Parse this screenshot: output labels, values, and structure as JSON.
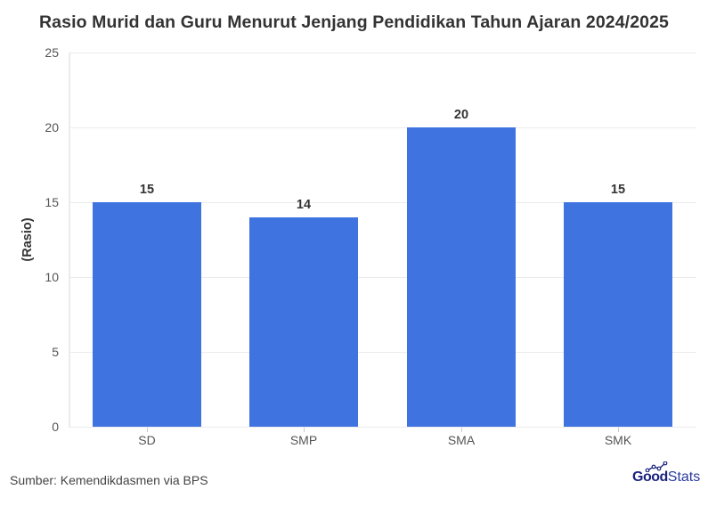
{
  "chart_data": {
    "type": "bar",
    "title": "Rasio Murid dan Guru Menurut Jenjang Pendidikan Tahun Ajaran 2024/2025",
    "xlabel": "",
    "ylabel": "(Rasio)",
    "categories": [
      "SD",
      "SMP",
      "SMA",
      "SMK"
    ],
    "values": [
      15,
      14,
      20,
      15
    ],
    "value_labels": [
      "15",
      "14",
      "20",
      "15"
    ],
    "yticks": [
      "0",
      "5",
      "10",
      "15",
      "20",
      "25"
    ],
    "ylim": [
      0,
      25
    ],
    "grid": true,
    "legend": "none",
    "bar_color": "#3f74e0"
  },
  "footer": {
    "source": "Sumber: Kemendikdasmen via BPS",
    "logo_bold": "Good",
    "logo_light": "Stats"
  }
}
